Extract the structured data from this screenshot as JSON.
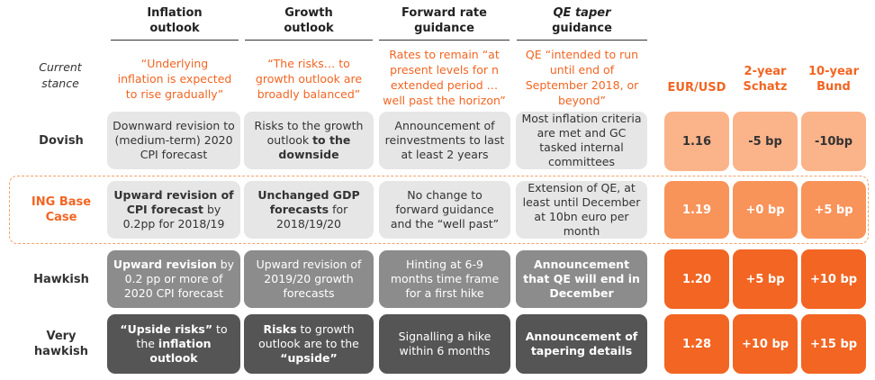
{
  "columns": {
    "inflation": {
      "l1": "Inflation",
      "l2": "outlook"
    },
    "growth": {
      "l1": "Growth",
      "l2": "outlook"
    },
    "forward": {
      "l1": "Forward rate",
      "l2": "guidance"
    },
    "qe": {
      "l1": "QE taper",
      "l2": "guidance"
    }
  },
  "current_stance": {
    "label_l1": "Current",
    "label_l2": "stance",
    "inflation": [
      "“Underlying",
      "inflation is expected",
      "to rise gradually”"
    ],
    "growth": [
      "“The risks… to",
      "growth outlook are",
      "broadly balanced”"
    ],
    "forward": [
      "Rates to remain “at",
      "present levels for n",
      "extended period …",
      "well past the horizon”"
    ],
    "qe": [
      "QE “intended to run",
      "until end of",
      "September 2018, or",
      "beyond”"
    ]
  },
  "market_headers": {
    "eurusd": "EUR/USD",
    "schatz_l1": "2-year",
    "schatz_l2": "Schatz",
    "bund_l1": "10-year",
    "bund_l2": "Bund"
  },
  "rows": {
    "dovish": {
      "label": "Dovish",
      "inflation": "Downward revision to (medium-term) 2020 CPI forecast",
      "growth_pre": "Risks to the growth outlook ",
      "growth_bold": "to the downside",
      "forward": "Announcement of reinvestments to last at least 2 years",
      "qe": "Most inflation criteria are met and GC tasked internal committees",
      "eurusd": "1.16",
      "schatz": "-5 bp",
      "bund": "-10bp"
    },
    "base": {
      "label_l1": "ING Base",
      "label_l2": "Case",
      "inflation_bold": "Upward revision of CPI forecast",
      "inflation_post": " by 0.2pp for 2018/19",
      "growth_bold": "Unchanged GDP forecasts",
      "growth_post": " for 2018/19/20",
      "forward": "No change to forward guidance and the “well past”",
      "qe": "Extension of QE, at least until December at 10bn euro per month",
      "eurusd": "1.19",
      "schatz": "+0 bp",
      "bund": "+5 bp"
    },
    "hawkish": {
      "label": "Hawkish",
      "inflation_bold": "Upward revision",
      "inflation_post": " by 0.2 pp or more of 2020  CPI forecast",
      "growth": "Upward revision of 2019/20 growth forecasts",
      "forward": "Hinting at 6-9 months time frame for a first hike",
      "qe": "Announcement that QE will end in December",
      "eurusd": "1.20",
      "schatz": "+5 bp",
      "bund": "+10 bp"
    },
    "very_hawkish": {
      "label_l1": "Very",
      "label_l2": "hawkish",
      "inflation_b1": "“Upside risks”",
      "inflation_m": " to the ",
      "inflation_b2": "inflation outlook",
      "growth_b1": "Risks",
      "growth_m": " to growth outlook are to the ",
      "growth_b2": "“upside”",
      "forward": "Signalling a hike within 6 months",
      "qe": "Announcement of tapering details",
      "eurusd": "1.28",
      "schatz": "+10 bp",
      "bund": "+15 bp"
    }
  }
}
